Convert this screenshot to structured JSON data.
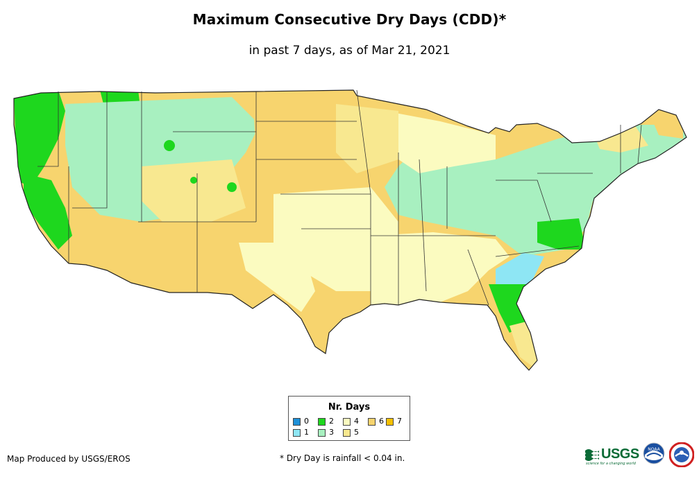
{
  "title": "Maximum Consecutive Dry Days (CDD)*",
  "subtitle": "in past 7 days, as of Mar 21, 2021",
  "legend": {
    "title": "Nr. Days",
    "items": [
      {
        "label": "0",
        "color": "#1e90d8"
      },
      {
        "label": "1",
        "color": "#8ee6f4"
      },
      {
        "label": "2",
        "color": "#1ed71e"
      },
      {
        "label": "3",
        "color": "#a8f0c0"
      },
      {
        "label": "4",
        "color": "#fbfbc0"
      },
      {
        "label": "5",
        "color": "#f8e890"
      },
      {
        "label": "6",
        "color": "#f7d46e"
      },
      {
        "label": "7",
        "color": "#f5c000"
      }
    ]
  },
  "footer": {
    "producer": "Map Produced by USGS/EROS",
    "note": "* Dry Day is rainfall < 0.04 in."
  },
  "logos": {
    "usgs_text": "USGS",
    "usgs_tagline": "science for a changing world",
    "noaa_text": "NOAA"
  }
}
